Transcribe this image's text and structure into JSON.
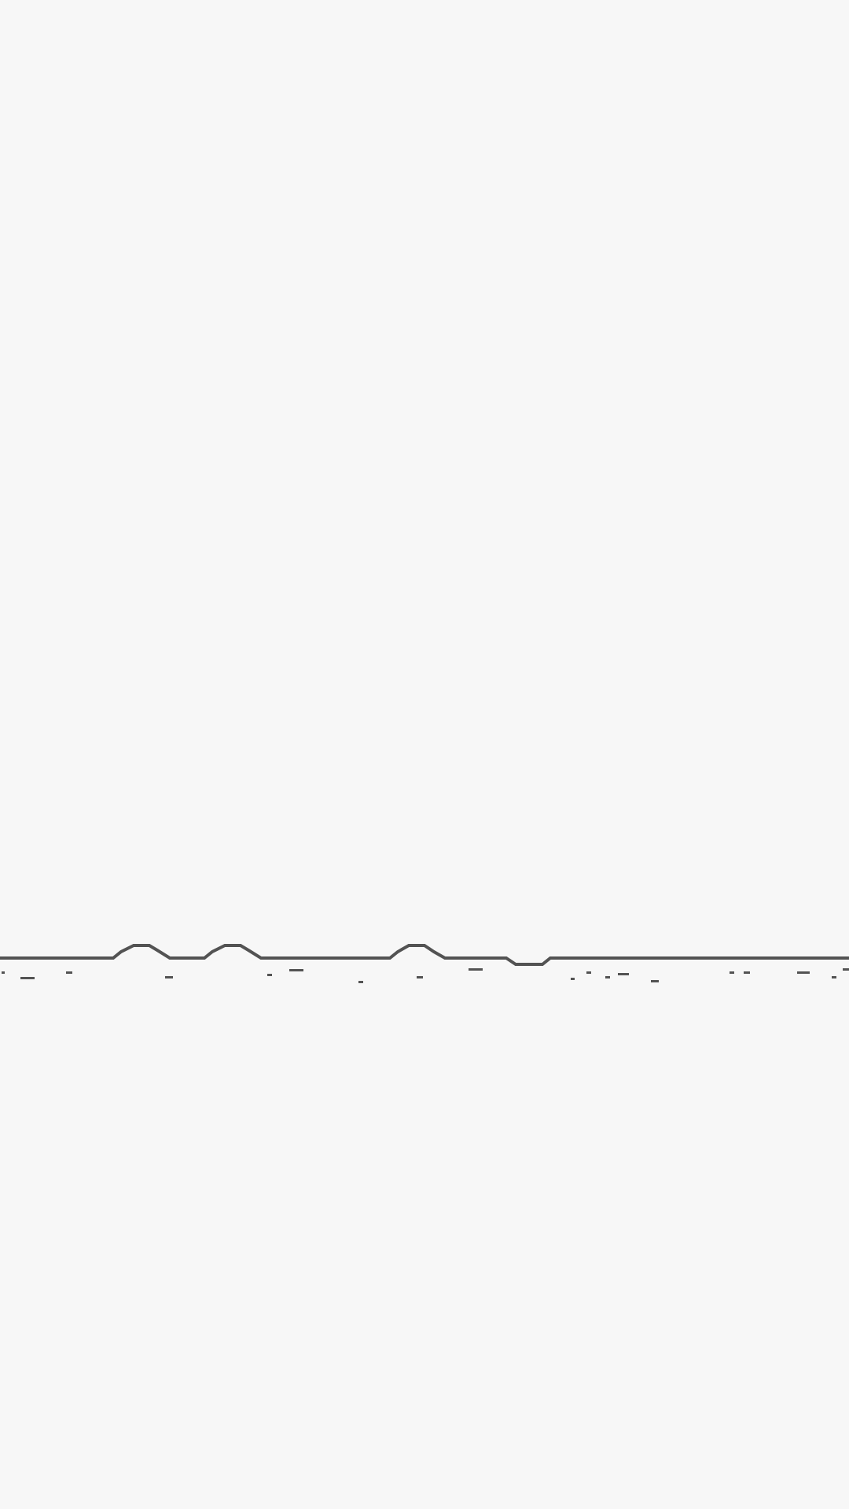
{
  "game": {
    "background_color": "#f7f7f7",
    "ground_color": "#535353",
    "elements": [
      "horizon-line",
      "ground-pebbles"
    ]
  }
}
